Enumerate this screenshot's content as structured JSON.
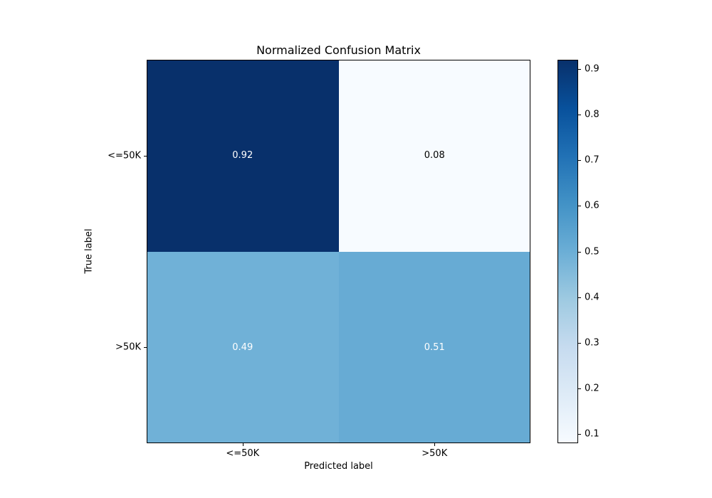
{
  "title": "Normalized Confusion Matrix",
  "chart_data": {
    "type": "heatmap",
    "title": "Normalized Confusion Matrix",
    "xlabel": "Predicted label",
    "ylabel": "True label",
    "x_tick_labels": [
      "<=50K",
      ">50K"
    ],
    "y_tick_labels": [
      "<=50K",
      ">50K"
    ],
    "matrix": [
      [
        0.92,
        0.08
      ],
      [
        0.49,
        0.51
      ]
    ],
    "cells": [
      {
        "row": 0,
        "col": 0,
        "label": "0.92",
        "bg": "#08306b",
        "text_color": "#ffffff"
      },
      {
        "row": 0,
        "col": 1,
        "label": "0.08",
        "bg": "#f7fbff",
        "text_color": "#000000"
      },
      {
        "row": 1,
        "col": 0,
        "label": "0.49",
        "bg": "#70b1d7",
        "text_color": "#ffffff"
      },
      {
        "row": 1,
        "col": 1,
        "label": "0.51",
        "bg": "#67abd4",
        "text_color": "#ffffff"
      }
    ],
    "colormap": "Blues",
    "colormap_min_color": "#f7fbff",
    "colormap_max_color": "#08306b",
    "colorbar": {
      "vmin": 0.08,
      "vmax": 0.92,
      "ticks": [
        0.9,
        0.8,
        0.7,
        0.6,
        0.5,
        0.4,
        0.3,
        0.2,
        0.1
      ],
      "tick_labels": [
        "0.9",
        "0.8",
        "0.7",
        "0.6",
        "0.5",
        "0.4",
        "0.3",
        "0.2",
        "0.1"
      ]
    },
    "grid": false,
    "legend": "colorbar-right",
    "background_color": "#ffffff"
  }
}
